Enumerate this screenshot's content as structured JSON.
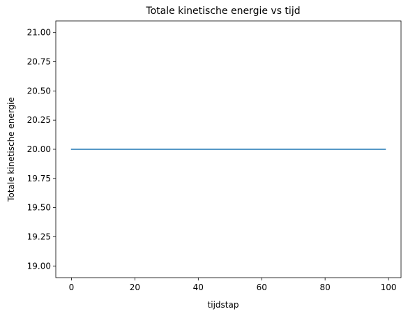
{
  "chart_data": {
    "type": "line",
    "title": "Totale kinetische energie vs tijd",
    "xlabel": "tijdstap",
    "ylabel": "Totale kinetische energie",
    "xlim": [
      -4.95,
      103.95
    ],
    "ylim": [
      18.9,
      21.1
    ],
    "x_ticks": [
      0,
      20,
      40,
      60,
      80,
      100
    ],
    "y_ticks": [
      19.0,
      19.25,
      19.5,
      19.75,
      20.0,
      20.25,
      20.5,
      20.75,
      21.0
    ],
    "y_tick_labels": [
      "19.00",
      "19.25",
      "19.50",
      "19.75",
      "20.00",
      "20.25",
      "20.50",
      "20.75",
      "21.00"
    ],
    "grid": false,
    "legend": "none",
    "series": [
      {
        "x_start": 0,
        "x_end": 99,
        "value": 20.0,
        "color": "#1f77b4"
      }
    ]
  }
}
